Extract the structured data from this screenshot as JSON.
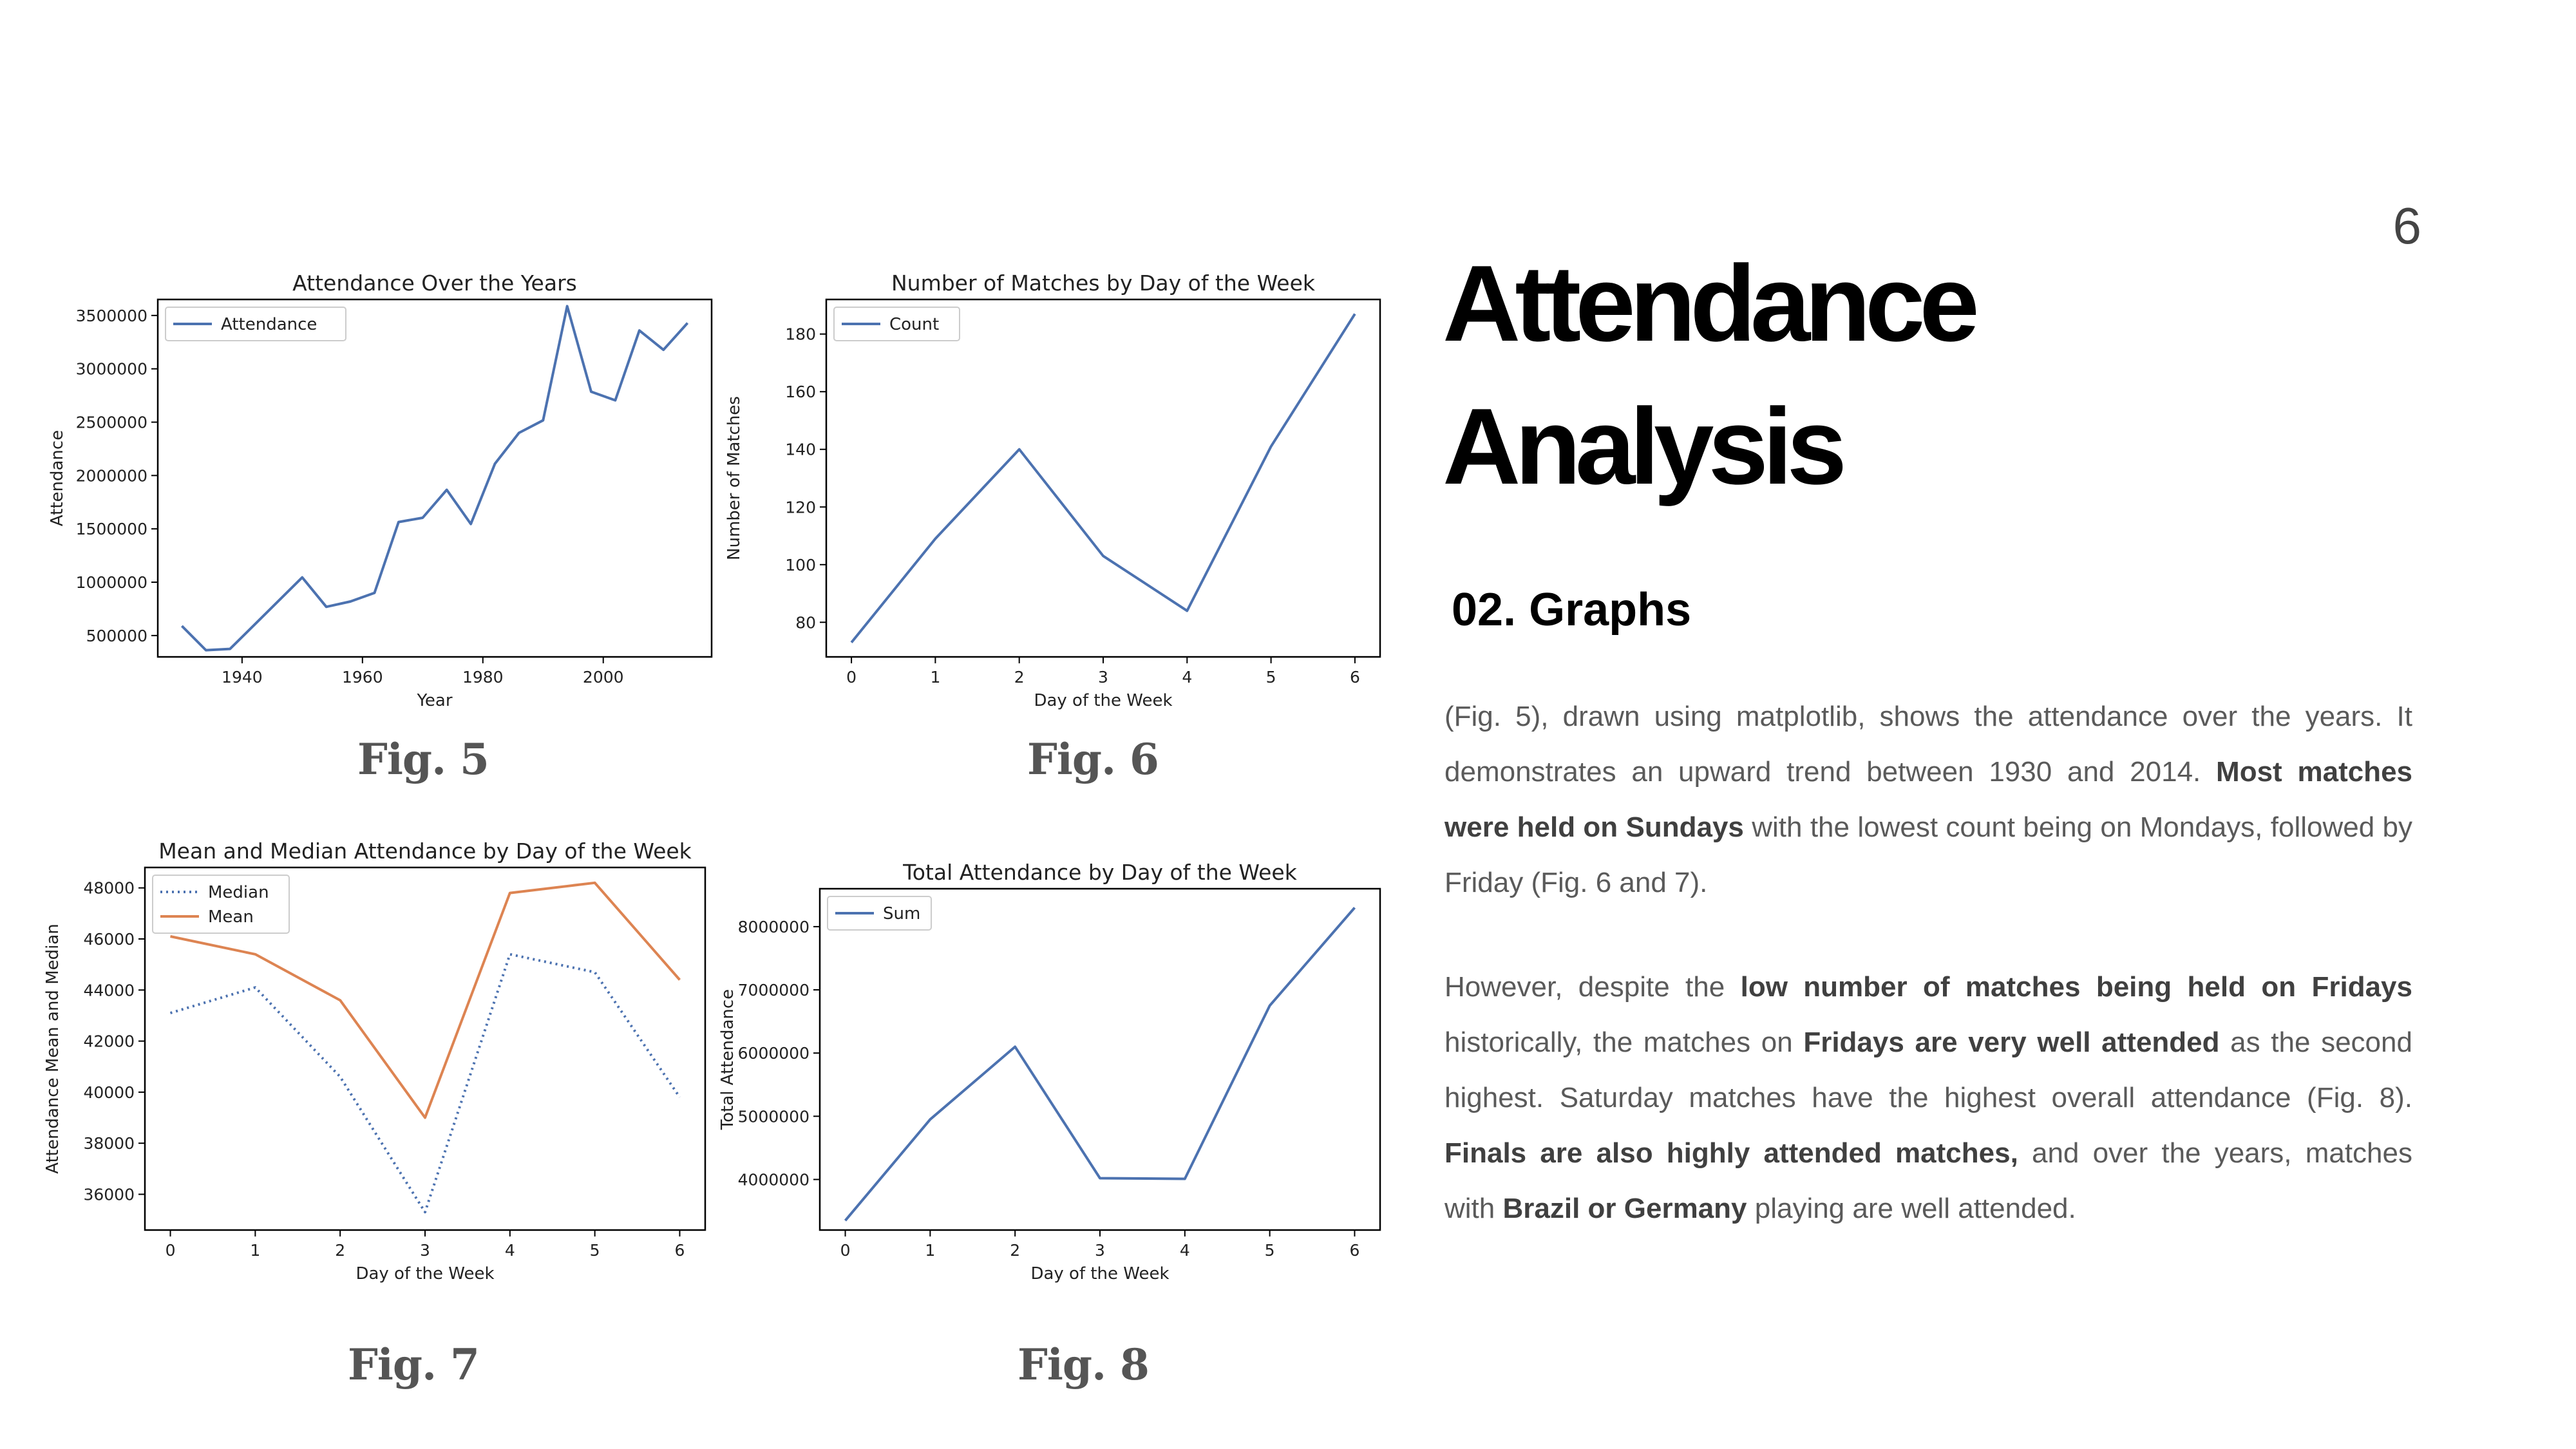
{
  "page": {
    "number": "6",
    "title_line1": "Attendance",
    "title_line2": "Analysis",
    "section_heading": "02. Graphs",
    "para1": {
      "p1": "(Fig. 5), drawn using matplotlib, shows the attendance over the years. It demonstrates an upward trend between 1930 and 2014. ",
      "b1": "Most matches were held on Sundays",
      "p2": " with the lowest count being on Mondays, followed by Friday (Fig. 6 and 7)."
    },
    "para2": {
      "p1": "However, despite the ",
      "b1": "low number of matches being held on Fridays",
      "p2": " historically, the matches on ",
      "b2": "Fridays are very well attended",
      "p3": " as the second highest. Saturday matches have the highest overall attendance (Fig. 8). ",
      "b3": "Finals are also highly attended matches,",
      "p4": " and over the years, matches with ",
      "b4": "Brazil or Germany",
      "p5": " playing are well attended."
    }
  },
  "captions": [
    "Fig. 5",
    "Fig. 6",
    "Fig. 7",
    "Fig. 8"
  ],
  "colors": {
    "blue": "#4c72b0",
    "orange": "#dd8452"
  },
  "chart_data": [
    {
      "type": "line",
      "title": "Attendance Over the Years",
      "xlabel": "Year",
      "ylabel": "Attendance",
      "xlim": [
        1926,
        2018
      ],
      "ylim": [
        300000,
        3650000
      ],
      "xticks": [
        1940,
        1960,
        1980,
        2000
      ],
      "yticks": [
        500000,
        1000000,
        1500000,
        2000000,
        2500000,
        3000000,
        3500000
      ],
      "legend": "upper left",
      "series": [
        {
          "name": "Attendance",
          "color": "#4c72b0",
          "style": "solid",
          "x": [
            1930,
            1934,
            1938,
            1950,
            1954,
            1958,
            1962,
            1966,
            1970,
            1974,
            1978,
            1982,
            1986,
            1990,
            1994,
            1998,
            2002,
            2006,
            2010,
            2014
          ],
          "y": [
            590000,
            363000,
            375000,
            1045000,
            769000,
            819000,
            900000,
            1564000,
            1604000,
            1866000,
            1546000,
            2110000,
            2400000,
            2517000,
            3587000,
            2785000,
            2705000,
            3359000,
            3178000,
            3429000
          ]
        }
      ]
    },
    {
      "type": "line",
      "title": "Number of Matches by Day of the Week",
      "xlabel": "Day of the Week",
      "ylabel": "Number of Matches",
      "xlim": [
        -0.3,
        6.3
      ],
      "ylim": [
        68,
        192
      ],
      "xticks": [
        0,
        1,
        2,
        3,
        4,
        5,
        6
      ],
      "yticks": [
        80,
        100,
        120,
        140,
        160,
        180
      ],
      "legend": "upper left",
      "series": [
        {
          "name": "Count",
          "color": "#4c72b0",
          "style": "solid",
          "x": [
            0,
            1,
            2,
            3,
            4,
            5,
            6
          ],
          "y": [
            73,
            109,
            140,
            103,
            84,
            141,
            187
          ]
        }
      ]
    },
    {
      "type": "line",
      "title": "Mean and Median Attendance by Day of the Week",
      "xlabel": "Day of the Week",
      "ylabel": "Attendance Mean and Median",
      "xlim": [
        -0.3,
        6.3
      ],
      "ylim": [
        34600,
        48800
      ],
      "xticks": [
        0,
        1,
        2,
        3,
        4,
        5,
        6
      ],
      "yticks": [
        36000,
        38000,
        40000,
        42000,
        44000,
        46000,
        48000
      ],
      "legend": "upper left",
      "series": [
        {
          "name": "Median",
          "color": "#4c72b0",
          "style": "dotted",
          "x": [
            0,
            1,
            2,
            3,
            4,
            5,
            6
          ],
          "y": [
            43100,
            44100,
            40600,
            35300,
            45400,
            44700,
            39800
          ]
        },
        {
          "name": "Mean",
          "color": "#dd8452",
          "style": "solid",
          "x": [
            0,
            1,
            2,
            3,
            4,
            5,
            6
          ],
          "y": [
            46100,
            45400,
            43600,
            39000,
            47800,
            48200,
            44400
          ]
        }
      ]
    },
    {
      "type": "line",
      "title": "Total Attendance by Day of the Week",
      "xlabel": "Day of the Week",
      "ylabel": "Total Attendance",
      "xlim": [
        -0.3,
        6.3
      ],
      "ylim": [
        3200000,
        8600000
      ],
      "xticks": [
        0,
        1,
        2,
        3,
        4,
        5,
        6
      ],
      "yticks": [
        4000000,
        5000000,
        6000000,
        7000000,
        8000000
      ],
      "legend": "upper left",
      "series": [
        {
          "name": "Sum",
          "color": "#4c72b0",
          "style": "solid",
          "x": [
            0,
            1,
            2,
            3,
            4,
            5,
            6
          ],
          "y": [
            3350000,
            4950000,
            6100000,
            4020000,
            4010000,
            6750000,
            8300000
          ]
        }
      ]
    }
  ]
}
